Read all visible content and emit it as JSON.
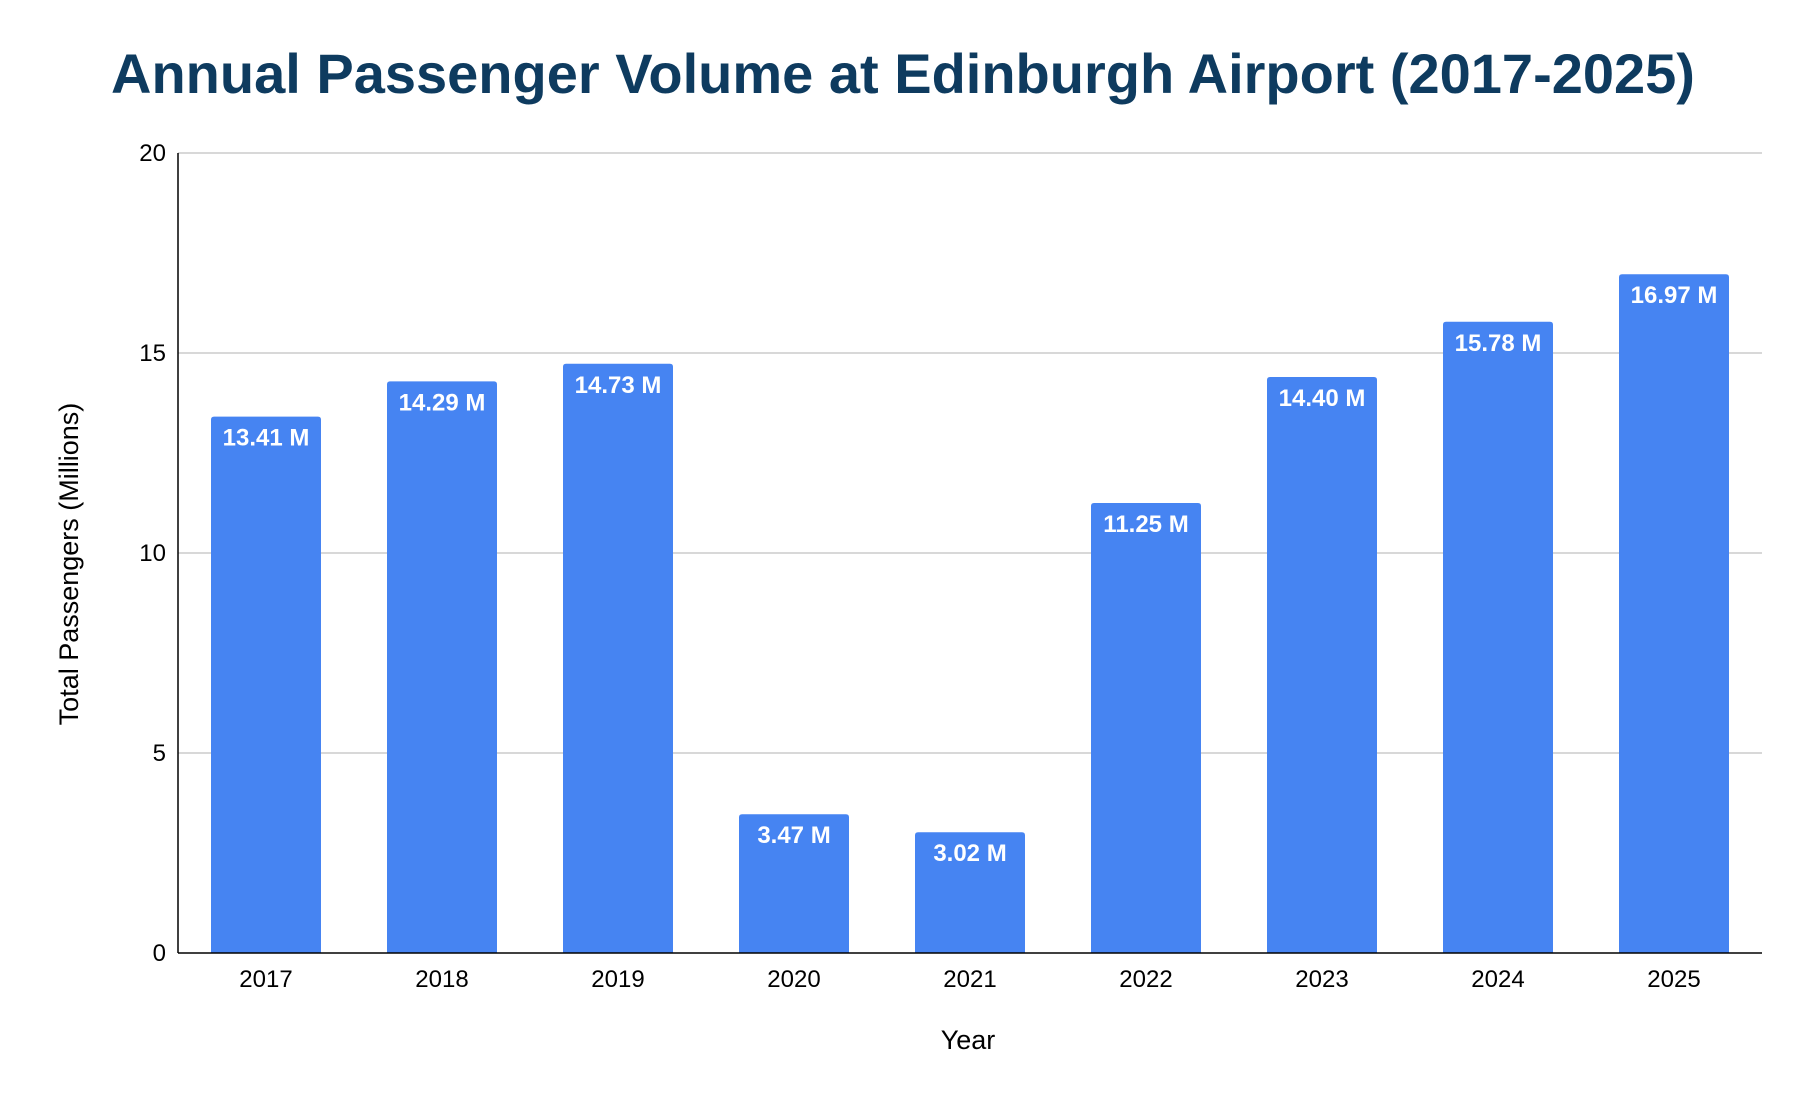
{
  "chart_data": {
    "type": "bar",
    "title": "Annual Passenger Volume at Edinburgh Airport (2017-2025)",
    "xlabel": "Year",
    "ylabel": "Total Passengers (Millions)",
    "categories": [
      "2017",
      "2018",
      "2019",
      "2020",
      "2021",
      "2022",
      "2023",
      "2024",
      "2025"
    ],
    "values": [
      13.41,
      14.29,
      14.73,
      3.47,
      3.02,
      11.25,
      14.4,
      15.78,
      16.97
    ],
    "data_labels": [
      "13.41 M",
      "14.29 M",
      "14.73 M",
      "3.47 M",
      "3.02 M",
      "11.25 M",
      "14.40 M",
      "15.78 M",
      "16.97 M"
    ],
    "ylim": [
      0,
      20
    ],
    "yticks": [
      0,
      5,
      10,
      15,
      20
    ],
    "ytick_labels": [
      "0",
      "5",
      "10",
      "15",
      "20"
    ],
    "grid": true,
    "legend": "none",
    "colors": {
      "bar": "#4684f2",
      "title": "#0e3b5f",
      "grid": "#cccccc",
      "axis": "#000000",
      "data_label": "#ffffff"
    }
  }
}
